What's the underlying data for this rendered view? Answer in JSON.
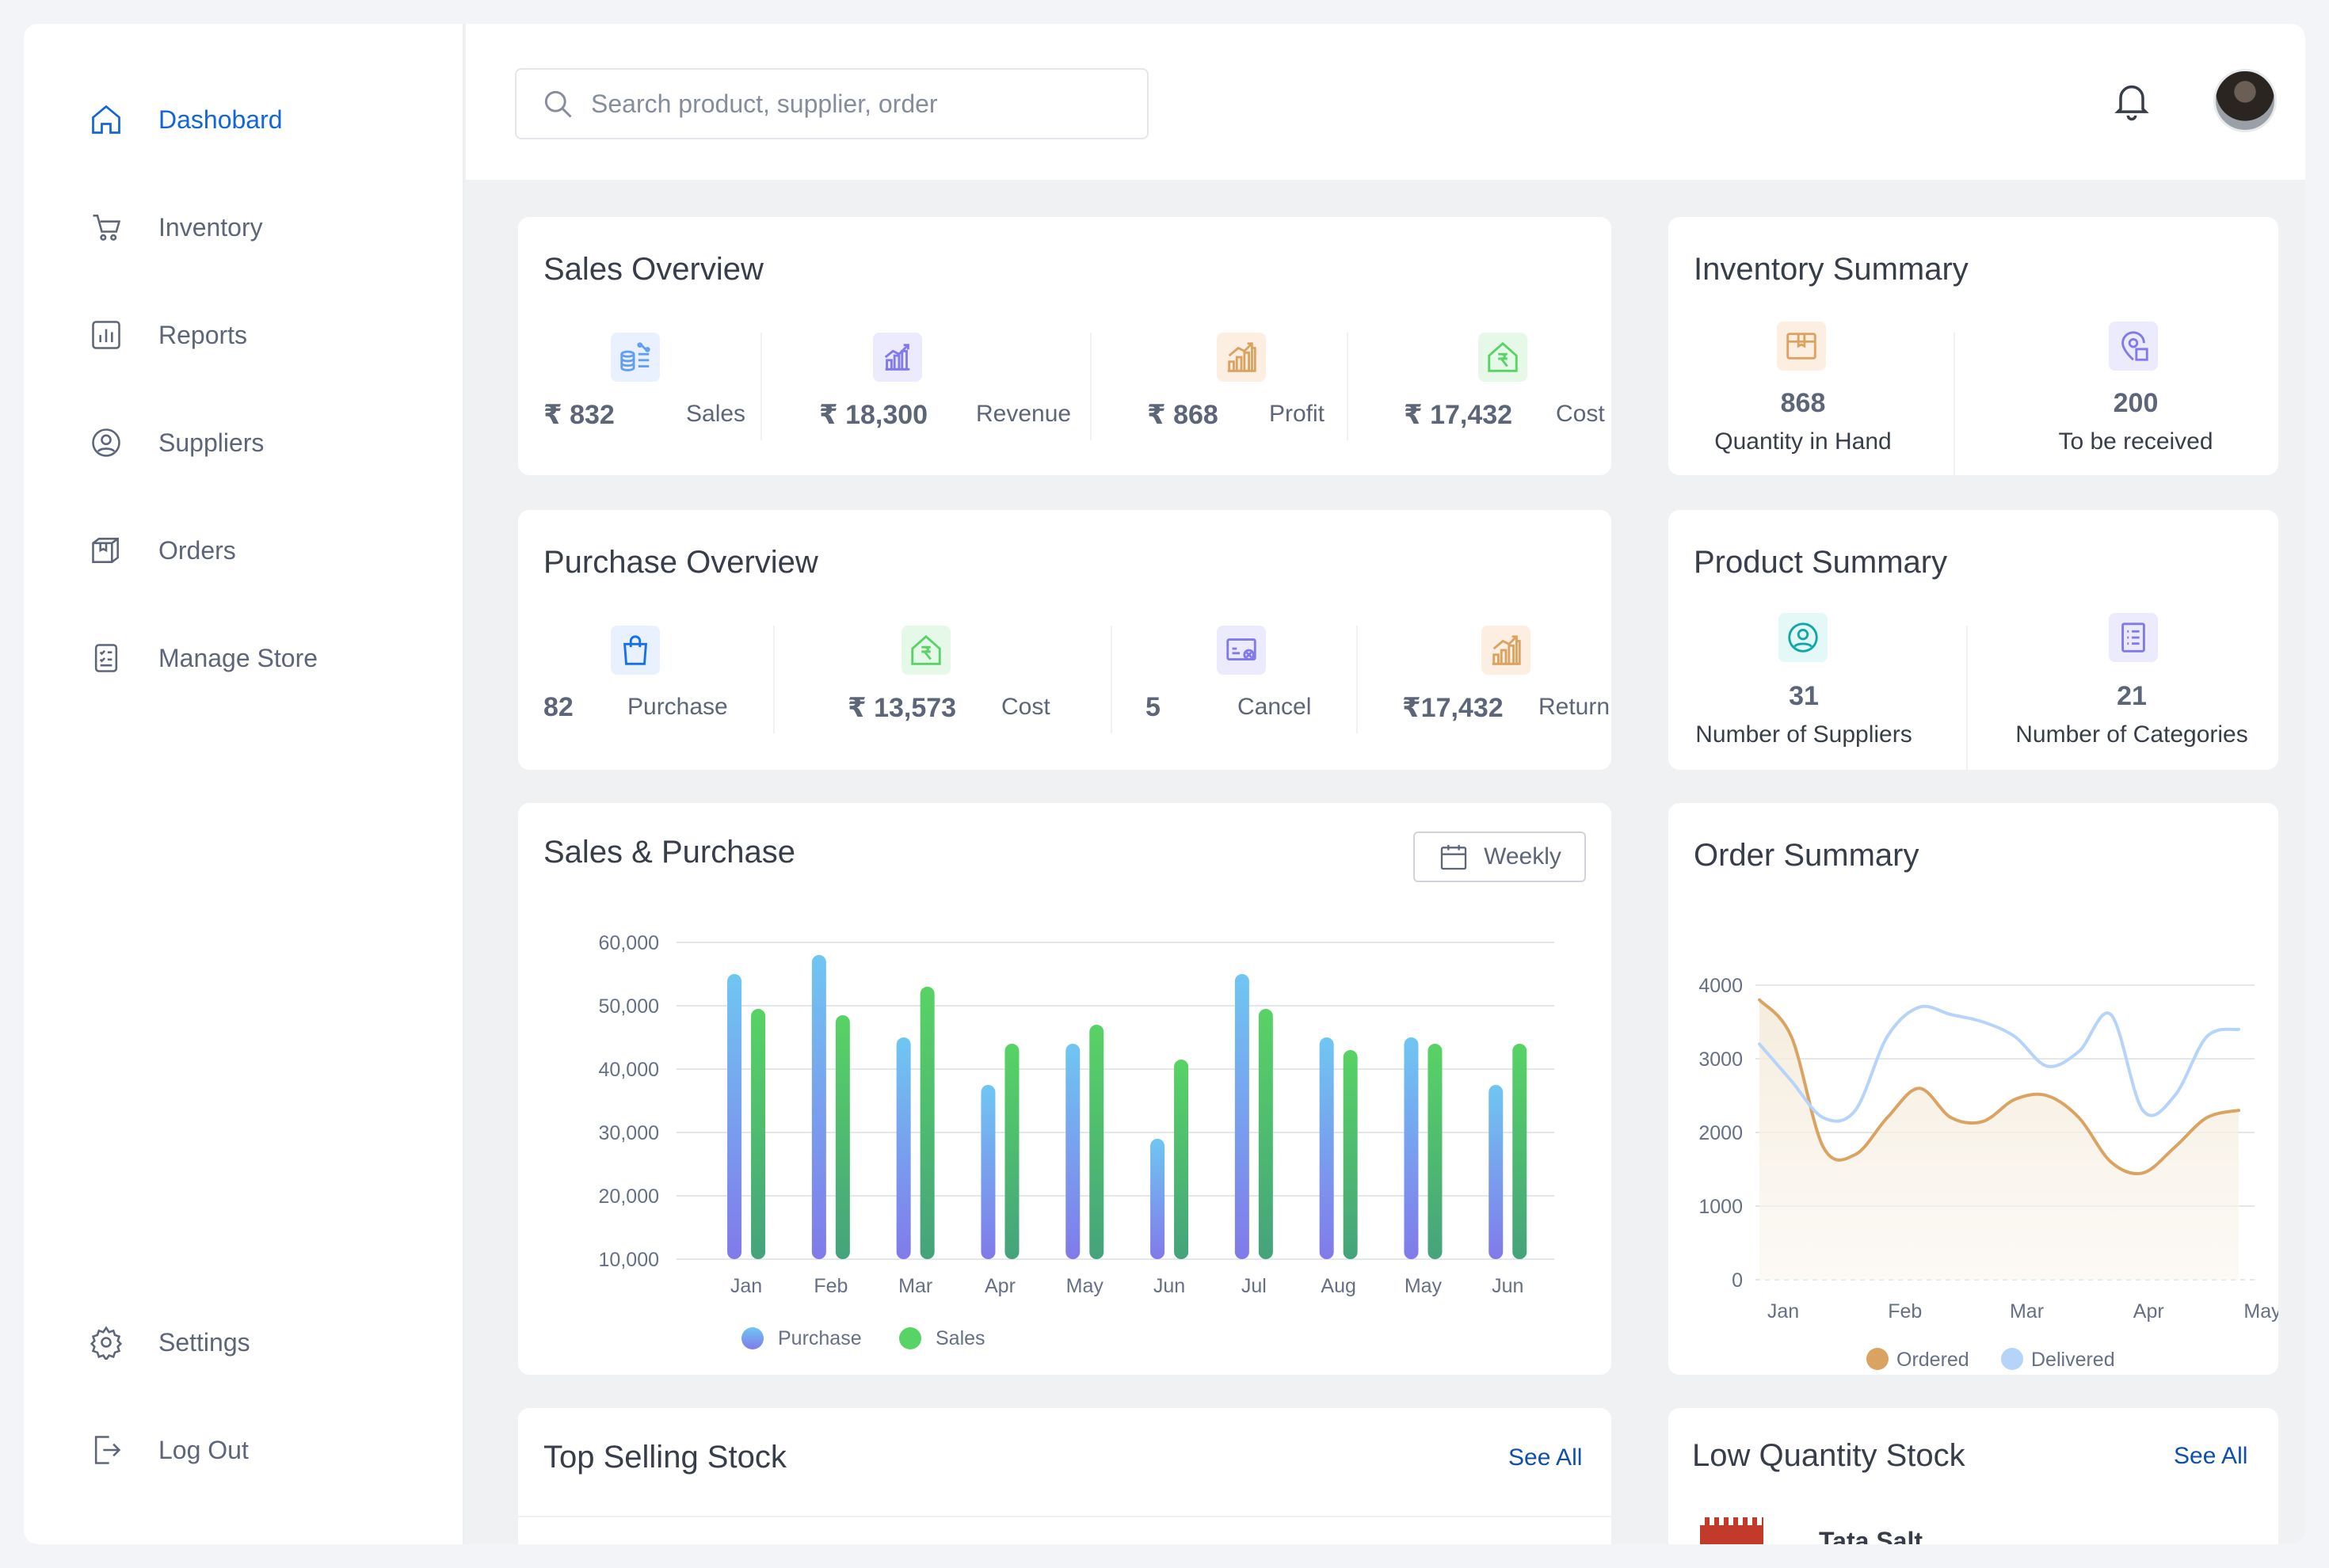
{
  "sidebar": {
    "items": [
      {
        "label": "Dashobard",
        "icon": "home-icon",
        "active": true
      },
      {
        "label": "Inventory",
        "icon": "cart-icon"
      },
      {
        "label": "Reports",
        "icon": "bar-chart-icon"
      },
      {
        "label": "Suppliers",
        "icon": "user-circle-icon"
      },
      {
        "label": "Orders",
        "icon": "box-icon"
      },
      {
        "label": "Manage Store",
        "icon": "checklist-icon"
      }
    ],
    "bottom_items": [
      {
        "label": "Settings",
        "icon": "gear-icon"
      },
      {
        "label": "Log Out",
        "icon": "logout-icon"
      }
    ]
  },
  "header": {
    "search_placeholder": "Search product, supplier, order",
    "icons": [
      "search-icon",
      "bell-icon",
      "avatar"
    ]
  },
  "sales_overview": {
    "title": "Sales Overview",
    "stats": [
      {
        "value": "₹ 832",
        "label": "Sales",
        "icon": "coins-percent-icon",
        "color": "#629ff4"
      },
      {
        "value": "₹ 18,300",
        "label": "Revenue",
        "icon": "growth-chart-icon",
        "color": "#817aea"
      },
      {
        "value": "₹ 868",
        "label": "Profit",
        "icon": "bar-growth-icon",
        "color": "#dbA362"
      },
      {
        "value": "₹ 17,432",
        "label": "Cost",
        "icon": "rupee-house-icon",
        "color": "#58d365"
      }
    ]
  },
  "inventory_summary": {
    "title": "Inventory Summary",
    "stats": [
      {
        "value": "868",
        "label": "Quantity in Hand",
        "icon": "package-icon",
        "color": "#dbA362"
      },
      {
        "value": "200",
        "label": "To be received",
        "icon": "location-box-icon",
        "color": "#817aea"
      }
    ]
  },
  "purchase_overview": {
    "title": "Purchase Overview",
    "stats": [
      {
        "value": "82",
        "label": "Purchase",
        "icon": "bag-icon",
        "color": "#629ff4"
      },
      {
        "value": "₹ 13,573",
        "label": "Cost",
        "icon": "rupee-house-icon",
        "color": "#58d365"
      },
      {
        "value": "5",
        "label": "Cancel",
        "icon": "truck-cancel-icon",
        "color": "#817aea"
      },
      {
        "value": "₹17,432",
        "label": "Return",
        "icon": "bar-growth-icon",
        "color": "#dbA362"
      }
    ]
  },
  "product_summary": {
    "title": "Product Summary",
    "stats": [
      {
        "value": "31",
        "label": "Number of Suppliers",
        "icon": "user-circle-icon",
        "color": "#10a760"
      },
      {
        "value": "21",
        "label": "Number of Categories",
        "icon": "list-icon",
        "color": "#817aea"
      }
    ]
  },
  "sales_purchase": {
    "title": "Sales & Purchase",
    "filter_label": "Weekly",
    "chart_data": {
      "type": "bar",
      "categories": [
        "Jan",
        "Feb",
        "Mar",
        "Apr",
        "May",
        "Jun",
        "Jul",
        "Aug",
        "May",
        "Jun"
      ],
      "series": [
        {
          "name": "Purchase",
          "values": [
            55000,
            58000,
            45000,
            37500,
            44000,
            29000,
            55000,
            45000,
            45000,
            37500
          ],
          "color": "#6fc6f2"
        },
        {
          "name": "Sales",
          "values": [
            49500,
            48500,
            53000,
            44000,
            47000,
            41500,
            49500,
            43000,
            44000,
            44000
          ],
          "color": "#58d365"
        }
      ],
      "ylim": [
        10000,
        60000
      ],
      "yticks": [
        "60,000",
        "50,000",
        "40,000",
        "30,000",
        "20,000",
        "10,000"
      ],
      "ytick_values": [
        60000,
        50000,
        40000,
        30000,
        20000,
        10000
      ],
      "legend_position": "bottom",
      "grid": true
    }
  },
  "order_summary": {
    "title": "Order Summary",
    "chart_data": {
      "type": "line",
      "x": [
        "Jan",
        "Feb",
        "Mar",
        "Apr",
        "May"
      ],
      "series": [
        {
          "name": "Ordered",
          "color": "#dbA362",
          "points": [
            3800,
            3300,
            1800,
            1700,
            2200,
            2600,
            2200,
            2150,
            2450,
            2500,
            2200,
            1600,
            1450,
            1800,
            2200,
            2300
          ]
        },
        {
          "name": "Delivered",
          "color": "#b6d3fa",
          "points": [
            3200,
            2700,
            2200,
            2300,
            3300,
            3700,
            3600,
            3500,
            3300,
            2900,
            3100,
            3600,
            2300,
            2500,
            3300,
            3400
          ]
        }
      ],
      "ylim": [
        0,
        4000
      ],
      "yticks": [
        "4000",
        "3000",
        "2000",
        "1000",
        "0"
      ],
      "ytick_values": [
        4000,
        3000,
        2000,
        1000,
        0
      ],
      "legend_position": "bottom",
      "grid": true
    }
  },
  "top_selling": {
    "title": "Top Selling Stock",
    "see_all": "See All"
  },
  "low_quantity": {
    "title": "Low Quantity  Stock",
    "see_all": "See All",
    "first_item": "Tata Salt"
  }
}
